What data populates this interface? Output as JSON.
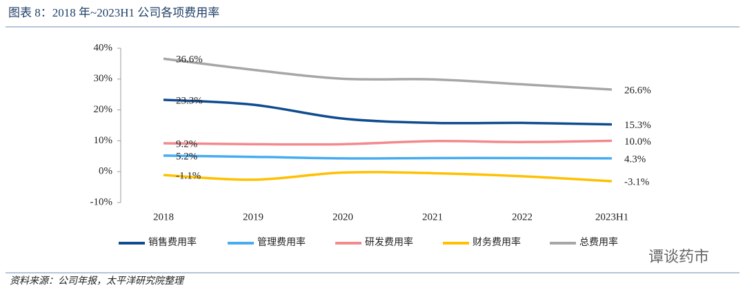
{
  "chart_data": {
    "type": "line",
    "title": "图表 8：2018 年~2023H1 公司各项费用率",
    "source": "资料来源：公司年报，太平洋研究院整理",
    "watermark": "谭谈药市",
    "categories": [
      "2018",
      "2019",
      "2020",
      "2021",
      "2022",
      "2023H1"
    ],
    "ylim": [
      -10,
      40
    ],
    "yticks": [
      {
        "value": -10,
        "label": "-10%"
      },
      {
        "value": 0,
        "label": "0%"
      },
      {
        "value": 10,
        "label": "10%"
      },
      {
        "value": 20,
        "label": "20%"
      },
      {
        "value": 30,
        "label": "30%"
      },
      {
        "value": 40,
        "label": "40%"
      }
    ],
    "series": [
      {
        "name": "销售费用率",
        "color": "#0f4c8f",
        "values": [
          23.3,
          21.7,
          17.2,
          15.8,
          15.8,
          15.3
        ],
        "value_labels": [
          "23.3%",
          null,
          null,
          null,
          null,
          "15.3%"
        ]
      },
      {
        "name": "管理费用率",
        "color": "#45acf0",
        "values": [
          5.2,
          4.8,
          4.3,
          4.4,
          4.4,
          4.3
        ],
        "value_labels": [
          "5.2%",
          null,
          null,
          null,
          null,
          "4.3%"
        ]
      },
      {
        "name": "研发费用率",
        "color": "#f3898d",
        "values": [
          9.2,
          8.9,
          8.9,
          9.9,
          9.6,
          10.0
        ],
        "value_labels": [
          "9.2%",
          null,
          null,
          null,
          null,
          "10.0%"
        ]
      },
      {
        "name": "财务费用率",
        "color": "#ffc000",
        "values": [
          -1.1,
          -2.6,
          -0.3,
          -0.5,
          -1.5,
          -3.1
        ],
        "value_labels": [
          "-1.1%",
          null,
          null,
          null,
          null,
          "-3.1%"
        ]
      },
      {
        "name": "总费用率",
        "color": "#a6a6a6",
        "values": [
          36.6,
          33.0,
          30.1,
          29.9,
          28.3,
          26.6
        ],
        "value_labels": [
          "36.6%",
          null,
          null,
          null,
          null,
          "26.6%"
        ]
      }
    ]
  }
}
